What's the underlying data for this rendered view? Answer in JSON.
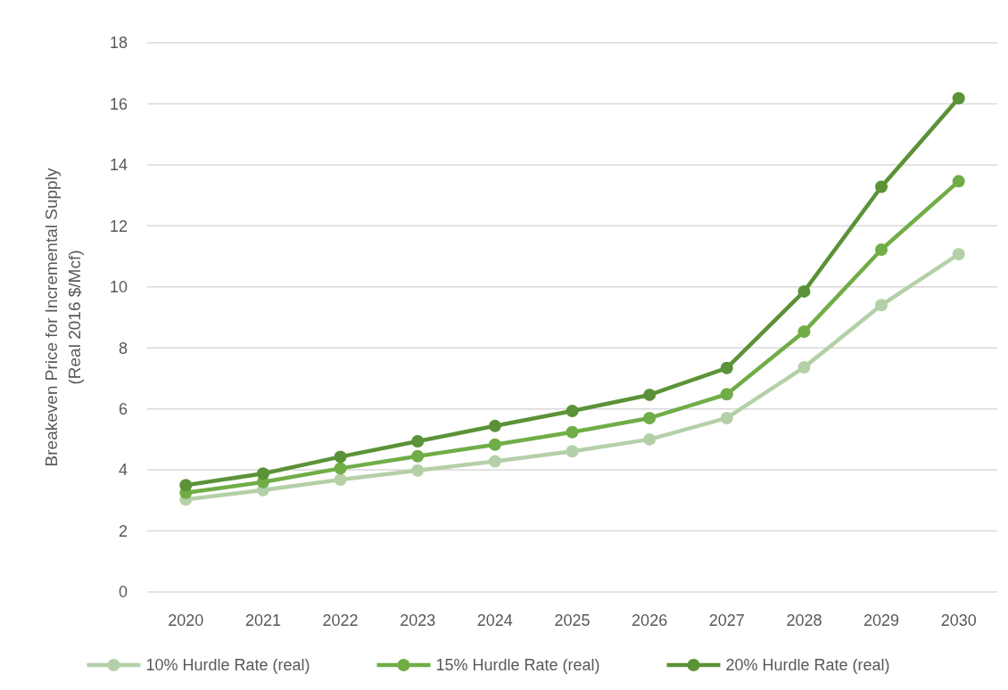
{
  "chart_data": {
    "type": "line",
    "ylabel": "Breakeven Price for Incremental Supply\n(Real 2016 $/Mcf)",
    "categories": [
      "2020",
      "2021",
      "2022",
      "2023",
      "2024",
      "2025",
      "2026",
      "2027",
      "2028",
      "2029",
      "2030"
    ],
    "series": [
      {
        "name": "10% Hurdle Rate (real)",
        "color": "#b4d0a8",
        "values": [
          3.03,
          3.34,
          3.68,
          3.98,
          4.28,
          4.61,
          5.0,
          5.7,
          7.36,
          9.4,
          11.07
        ]
      },
      {
        "name": "15% Hurdle Rate (real)",
        "color": "#70ad47",
        "values": [
          3.25,
          3.6,
          4.05,
          4.45,
          4.83,
          5.24,
          5.7,
          6.48,
          8.53,
          11.22,
          13.46
        ]
      },
      {
        "name": "20% Hurdle Rate (real)",
        "color": "#5b9237",
        "values": [
          3.5,
          3.88,
          4.43,
          4.94,
          5.44,
          5.93,
          6.46,
          7.34,
          9.85,
          13.28,
          16.18
        ]
      }
    ],
    "ylim": [
      0,
      18
    ],
    "yticks": [
      0,
      2,
      4,
      6,
      8,
      10,
      12,
      14,
      16,
      18
    ],
    "grid": "y",
    "legend": "bottom",
    "marker": "circle",
    "line_style": "solid"
  }
}
